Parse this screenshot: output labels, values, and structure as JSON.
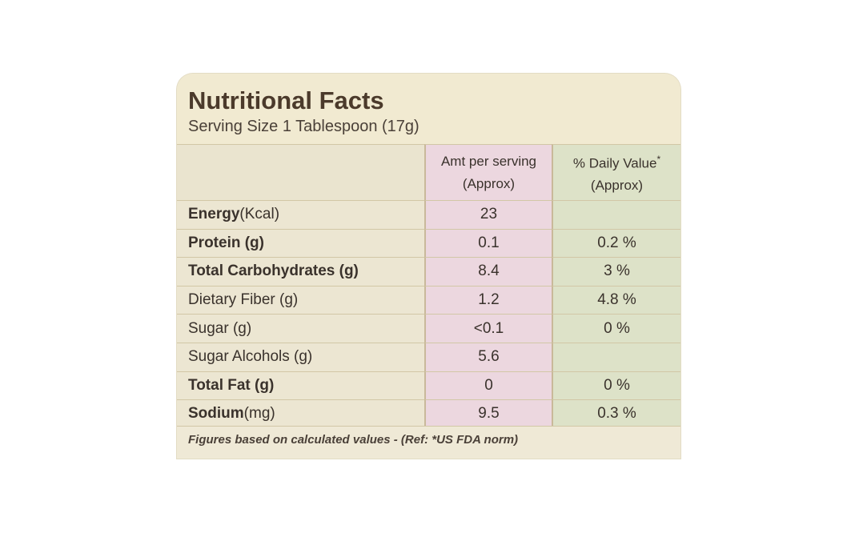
{
  "title": "Nutritional Facts",
  "serving_size": "Serving Size 1 Tablespoon (17g)",
  "columns": {
    "amount_line1": "Amt per serving",
    "amount_line2": "(Approx)",
    "dv_line1": "% Daily Value",
    "dv_mark": "*",
    "dv_line2": "(Approx)"
  },
  "rows": [
    {
      "name_bold": "Energy",
      "name_rest": " (Kcal)",
      "amount": "23",
      "dv": ""
    },
    {
      "name_bold": "Protein (g)",
      "name_rest": "",
      "amount": "0.1",
      "dv": "0.2 %"
    },
    {
      "name_bold": "Total Carbohydrates (g)",
      "name_rest": "",
      "amount": "8.4",
      "dv": "3 %"
    },
    {
      "name_bold": "",
      "name_rest": "Dietary Fiber (g)",
      "amount": "1.2",
      "dv": "4.8 %"
    },
    {
      "name_bold": "",
      "name_rest": "Sugar (g)",
      "amount": "<0.1",
      "dv": "0 %"
    },
    {
      "name_bold": "",
      "name_rest": "Sugar Alcohols (g)",
      "amount": "5.6",
      "dv": ""
    },
    {
      "name_bold": "Total Fat (g)",
      "name_rest": "",
      "amount": "0",
      "dv": "0 %"
    },
    {
      "name_bold": "Sodium",
      "name_rest": " (mg)",
      "amount": "9.5",
      "dv": "0.3 %"
    }
  ],
  "footnote": "Figures based on calculated values - (Ref: *US FDA norm)"
}
